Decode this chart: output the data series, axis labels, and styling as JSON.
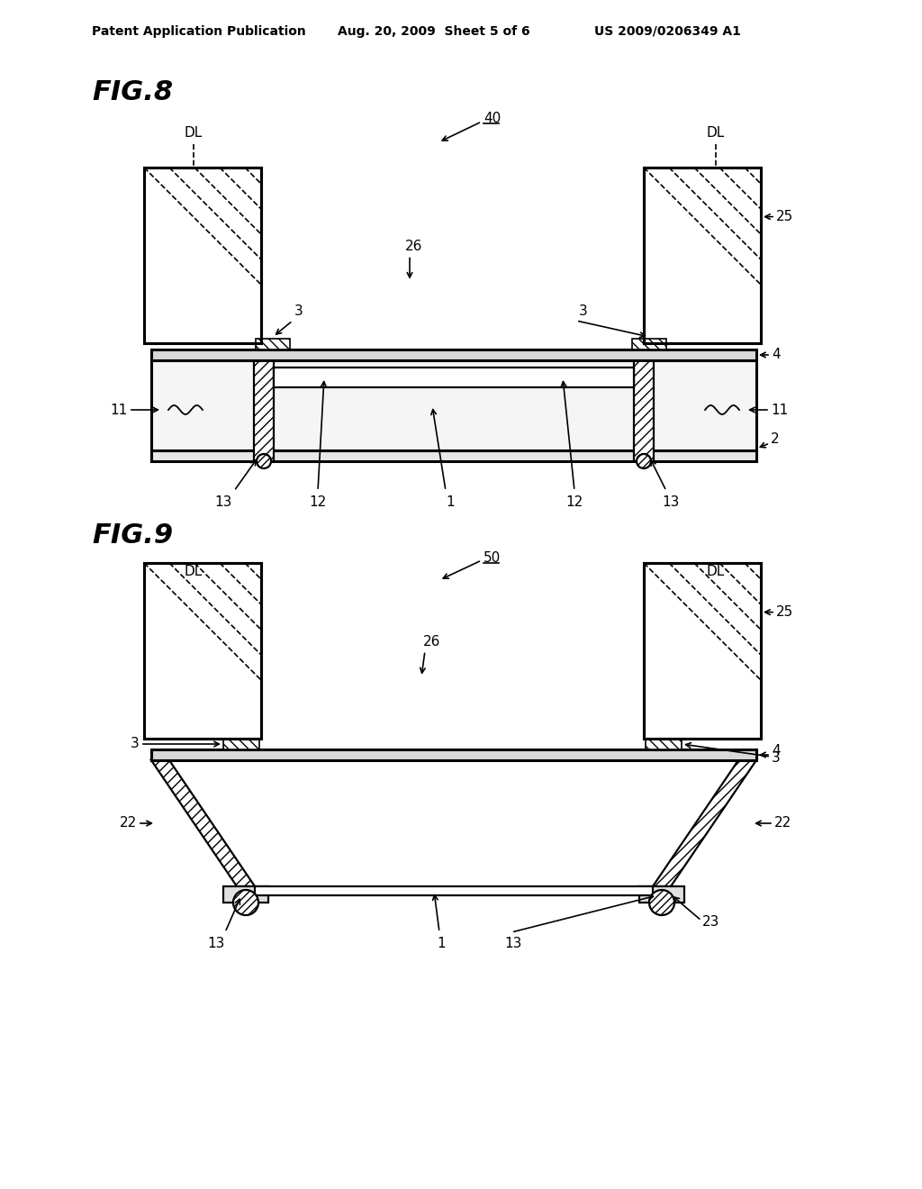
{
  "header_left": "Patent Application Publication",
  "header_mid": "Aug. 20, 2009  Sheet 5 of 6",
  "header_right": "US 2009/0206349 A1",
  "fig8_label": "FIG.8",
  "fig9_label": "FIG.9",
  "fig8_ref": "40",
  "fig9_ref": "50",
  "bg_color": "#ffffff"
}
